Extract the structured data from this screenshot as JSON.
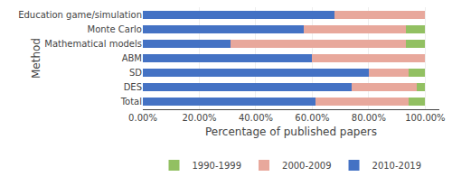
{
  "chart_data": {
    "type": "bar",
    "orientation": "horizontal",
    "stacked": true,
    "categories": [
      "Education game/simulation",
      "Monte Carlo",
      "Mathematical models",
      "ABM",
      "SD",
      "DES",
      "Total"
    ],
    "series": [
      {
        "name": "2010-2019",
        "color": "#4472C4",
        "values": [
          68.0,
          57.0,
          31.0,
          60.0,
          80.0,
          74.0,
          61.0
        ]
      },
      {
        "name": "2000-2009",
        "color": "#E8A89C",
        "values": [
          32.0,
          36.0,
          62.0,
          40.0,
          14.0,
          23.0,
          33.0
        ]
      },
      {
        "name": "1990-1999",
        "color": "#92C062",
        "values": [
          0.0,
          7.0,
          7.0,
          0.0,
          6.0,
          3.0,
          6.0
        ]
      }
    ],
    "xlabel": "Percentage of published papers",
    "ylabel": "Method",
    "xlim": [
      0,
      105
    ],
    "xticks": [
      {
        "value": 0,
        "label": "0.00%"
      },
      {
        "value": 20,
        "label": "20.00%"
      },
      {
        "value": 40,
        "label": "40.00%"
      },
      {
        "value": 60,
        "label": "60.00%"
      },
      {
        "value": 80,
        "label": "80.00%"
      },
      {
        "value": 100,
        "label": "100.00%"
      }
    ],
    "grid": true,
    "legend": "bottom"
  }
}
